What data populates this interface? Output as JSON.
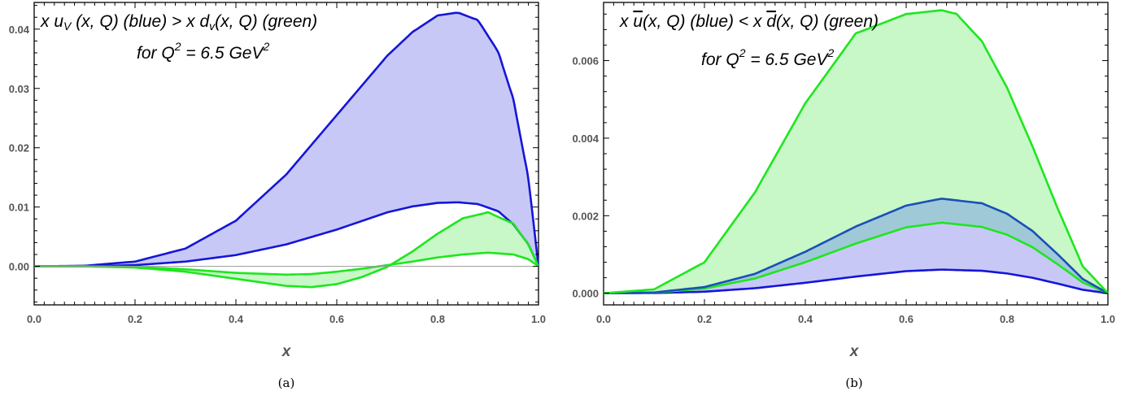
{
  "chart_data": [
    {
      "type": "area",
      "caption": "(a)",
      "xlabel": "x",
      "xlim": [
        0.0,
        1.0
      ],
      "ylim": [
        -0.0065,
        0.0445
      ],
      "xticks": [
        "0.0",
        "0.2",
        "0.4",
        "0.6",
        "0.8",
        "1.0"
      ],
      "yticks": [
        "0.00",
        "0.01",
        "0.02",
        "0.03",
        "0.04"
      ],
      "annotation_line1": "x u_V (x, Q) (blue) > x d_v(x, Q) (green)",
      "annotation_line2": "for Q^2 = 6.5 GeV^2",
      "colors": {
        "blue": "#1515d8",
        "blue_fill": "#c8c8f6",
        "green": "#1ee61e",
        "green_fill": "#c8f7c8"
      },
      "band_blue": {
        "x": [
          0.0,
          0.1,
          0.2,
          0.3,
          0.4,
          0.5,
          0.6,
          0.7,
          0.75,
          0.8,
          0.84,
          0.88,
          0.92,
          0.95,
          0.98,
          1.0
        ],
        "upper": [
          0.0,
          0.0001,
          0.0008,
          0.003,
          0.0077,
          0.0155,
          0.0255,
          0.0355,
          0.0395,
          0.0423,
          0.0428,
          0.0415,
          0.0362,
          0.0282,
          0.0148,
          0.0
        ],
        "lower": [
          0.0,
          0.0,
          0.0002,
          0.0008,
          0.0019,
          0.0037,
          0.0062,
          0.0091,
          0.0101,
          0.0107,
          0.0108,
          0.0105,
          0.0093,
          0.0071,
          0.0037,
          0.0
        ]
      },
      "band_green": {
        "x": [
          0.0,
          0.1,
          0.2,
          0.3,
          0.4,
          0.5,
          0.55,
          0.6,
          0.65,
          0.7,
          0.75,
          0.8,
          0.85,
          0.9,
          0.95,
          0.98,
          1.0
        ],
        "curve_a": [
          0.0,
          0.0,
          -0.0002,
          -0.0009,
          -0.0021,
          -0.0033,
          -0.0035,
          -0.003,
          -0.0018,
          -0.0001,
          0.0025,
          0.0055,
          0.0081,
          0.0091,
          0.0072,
          0.0037,
          0.0
        ],
        "curve_b": [
          0.0,
          0.0,
          -0.0001,
          -0.0005,
          -0.0011,
          -0.0014,
          -0.0013,
          -0.0009,
          -0.0004,
          0.0002,
          0.0008,
          0.0015,
          0.002,
          0.0023,
          0.002,
          0.0012,
          0.0
        ]
      }
    },
    {
      "type": "area",
      "caption": "(b)",
      "xlabel": "x",
      "xlim": [
        0.0,
        1.0
      ],
      "ylim": [
        -0.0003,
        0.0075
      ],
      "xticks": [
        "0.0",
        "0.2",
        "0.4",
        "0.6",
        "0.8",
        "1.0"
      ],
      "yticks": [
        "0.000",
        "0.002",
        "0.004",
        "0.006"
      ],
      "annotation_line1": "x ū(x, Q) (blue) < x d̄(x, Q) (green)",
      "annotation_line2": "for Q^2 = 6.5 GeV^2",
      "colors": {
        "blue": "#1515d8",
        "blue_fill": "#c8c8f6",
        "green": "#1ee61e",
        "green_fill": "#c8f7c8",
        "overlap_fill": "#9fc9d6",
        "overlap_line": "#1a4fb8"
      },
      "band_blue": {
        "x": [
          0.0,
          0.1,
          0.2,
          0.3,
          0.4,
          0.5,
          0.6,
          0.67,
          0.75,
          0.8,
          0.85,
          0.9,
          0.95,
          1.0
        ],
        "upper": [
          0.0,
          2e-05,
          0.00016,
          0.0005,
          0.00107,
          0.00172,
          0.00226,
          0.00244,
          0.00232,
          0.00205,
          0.00161,
          0.00101,
          0.00037,
          0.0
        ],
        "lower": [
          0.0,
          5e-06,
          4e-05,
          0.00013,
          0.00027,
          0.00043,
          0.00057,
          0.00061,
          0.00058,
          0.00051,
          0.0004,
          0.00025,
          9e-05,
          0.0
        ]
      },
      "band_green": {
        "x": [
          0.0,
          0.1,
          0.2,
          0.3,
          0.4,
          0.5,
          0.6,
          0.67,
          0.7,
          0.75,
          0.8,
          0.85,
          0.9,
          0.95,
          1.0
        ],
        "upper": [
          0.0,
          0.0001,
          0.0008,
          0.0026,
          0.0049,
          0.0067,
          0.0072,
          0.0073,
          0.0072,
          0.0065,
          0.0053,
          0.0038,
          0.0022,
          0.0007,
          0.0
        ],
        "lower": [
          0.0,
          1.5e-05,
          0.00012,
          0.00038,
          0.0008,
          0.00128,
          0.0017,
          0.00182,
          0.00178,
          0.00171,
          0.00151,
          0.00119,
          0.00075,
          0.00028,
          0.0
        ]
      }
    }
  ]
}
